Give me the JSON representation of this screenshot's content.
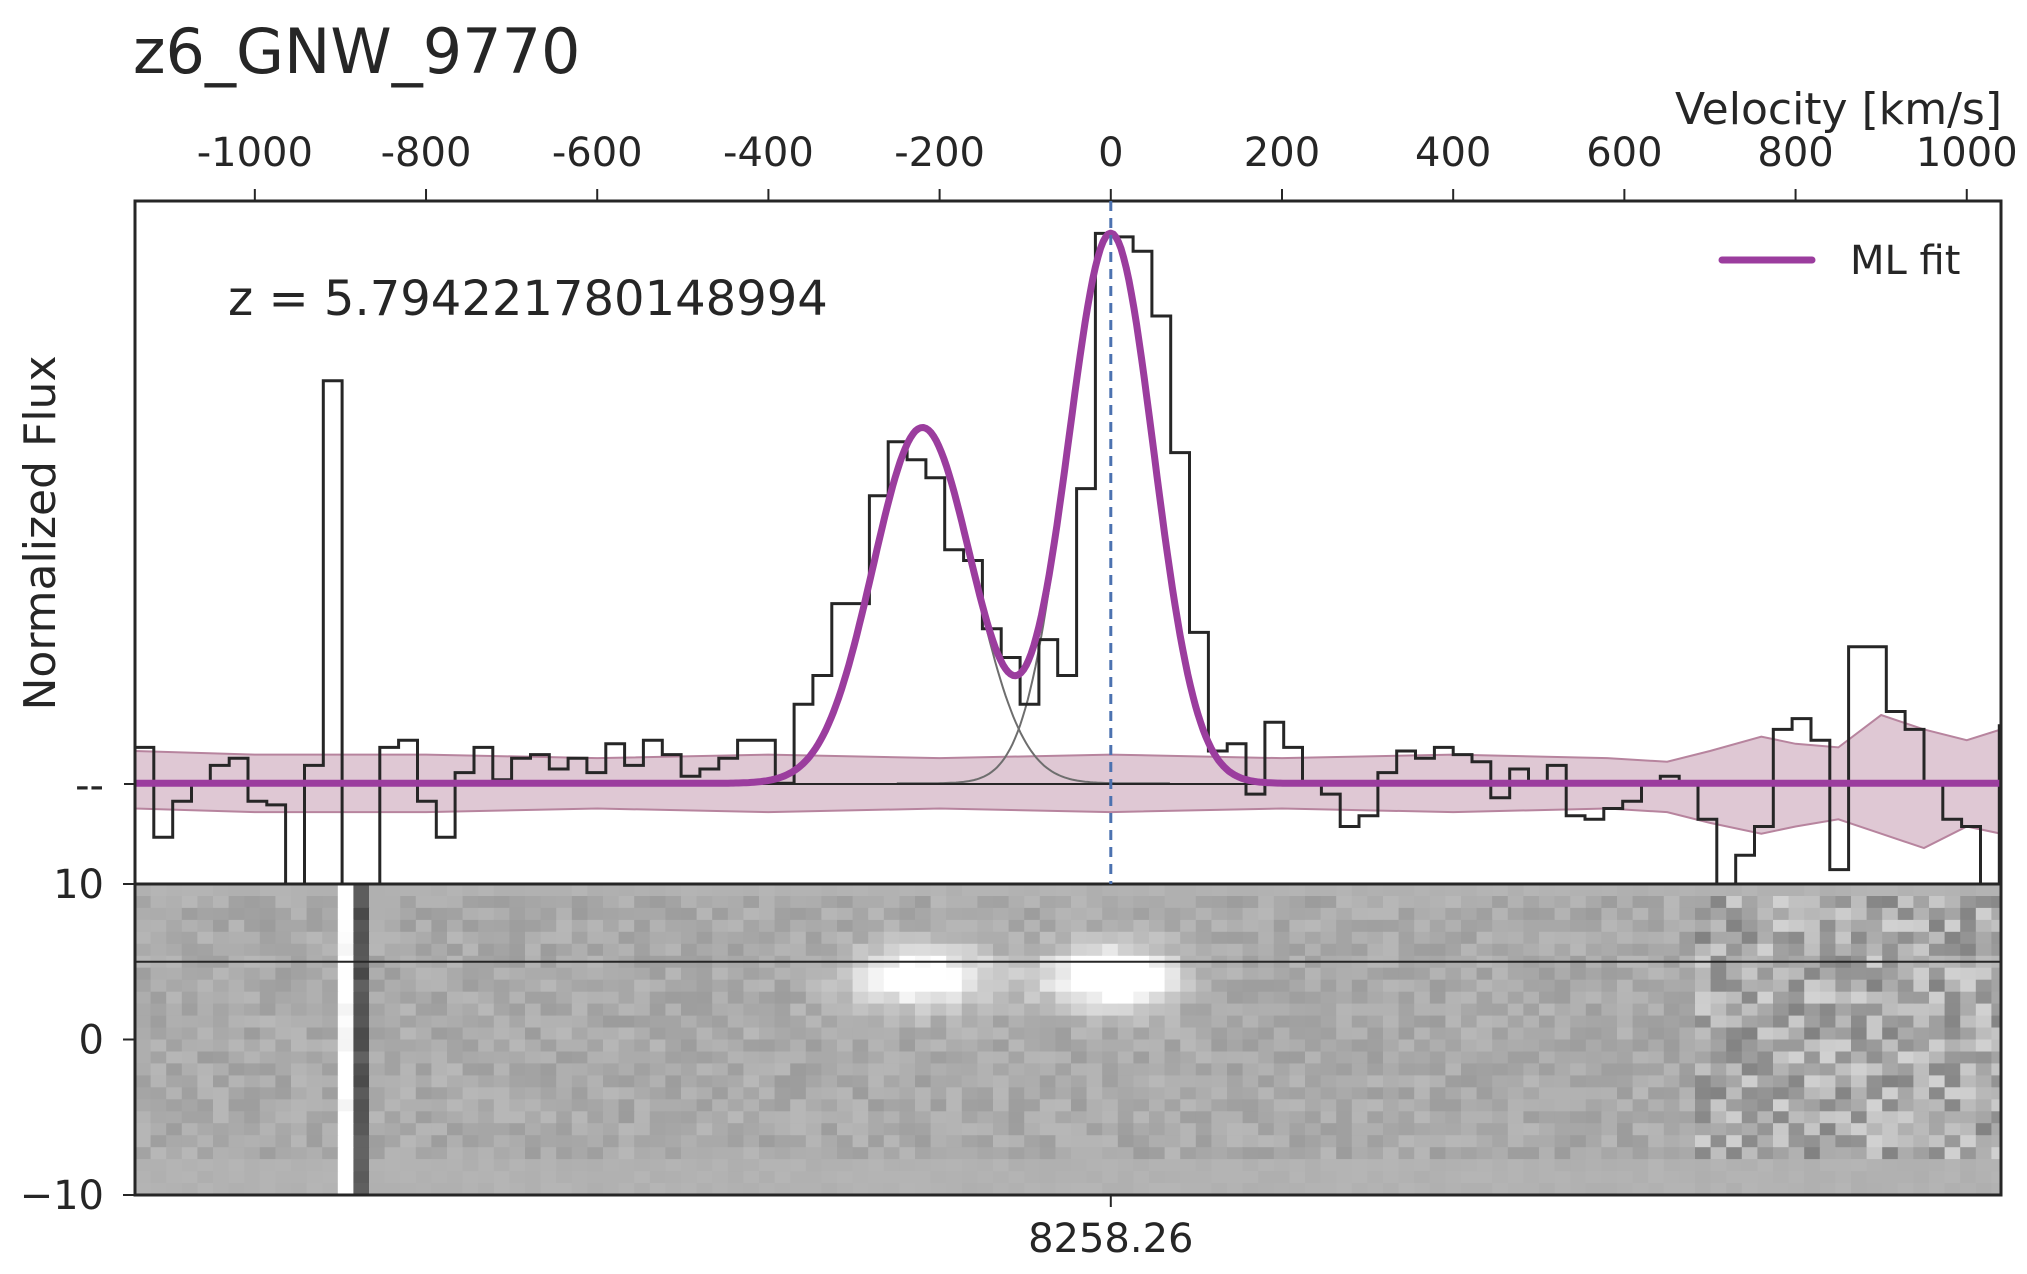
{
  "chart_data": [
    {
      "type": "line",
      "title": "z6_GNW_9770",
      "annotation": "z = 5.794221780148994",
      "xlabel": "Velocity [km/s]",
      "ylabel": "Normalized Flux",
      "xlim": [
        -1140,
        1040
      ],
      "ylim": [
        -0.28,
        1.62
      ],
      "x_ticks": [
        -1000,
        -800,
        -600,
        -400,
        -200,
        0,
        200,
        400,
        600,
        800,
        1000
      ],
      "x_tick_labels": [
        "-1000",
        "-800",
        "-600",
        "-400",
        "-200",
        "0",
        "200",
        "400",
        "600",
        "800",
        "1000"
      ],
      "y_tick_labels": [
        "--"
      ],
      "y_ticks": [
        0
      ],
      "grid": false,
      "legend": {
        "position": "top-right",
        "entries": [
          "ML fit"
        ]
      },
      "colors": {
        "fit": "#9b3d9e",
        "data": "#262626",
        "error_band": "#c9a3b7",
        "reference_line": "#4c72b0",
        "component": "#6e6e6e"
      },
      "fit_components": [
        {
          "center": -220,
          "sigma": 58,
          "amplitude": 0.99
        },
        {
          "center": 0,
          "sigma": 50,
          "amplitude": 1.53
        }
      ],
      "reference_velocity": 0,
      "series": [
        {
          "name": "",
          "style": "step",
          "x": [
            -1140,
            -1118,
            -1096,
            -1074,
            -1052,
            -1030,
            -1008,
            -986,
            -964,
            -942,
            -920,
            -898,
            -876,
            -854,
            -832,
            -810,
            -788,
            -766,
            -744,
            -722,
            -700,
            -678,
            -656,
            -634,
            -612,
            -590,
            -568,
            -546,
            -524,
            -502,
            -480,
            -458,
            -436,
            -414,
            -392,
            -370,
            -348,
            -326,
            -304,
            -282,
            -260,
            -238,
            -216,
            -194,
            -172,
            -150,
            -128,
            -106,
            -84,
            -62,
            -40,
            -18,
            4,
            26,
            48,
            70,
            92,
            114,
            136,
            158,
            180,
            202,
            224,
            246,
            268,
            290,
            312,
            334,
            356,
            378,
            400,
            422,
            444,
            466,
            488,
            510,
            532,
            554,
            576,
            598,
            620,
            642,
            664,
            686,
            708,
            730,
            752,
            774,
            796,
            818,
            840,
            862,
            884,
            906,
            928,
            950,
            972,
            994,
            1016,
            1038
          ],
          "y": [
            0.1,
            -0.15,
            -0.05,
            0.0,
            0.05,
            0.07,
            -0.05,
            -0.06,
            -0.4,
            0.05,
            1.12,
            -0.3,
            -0.3,
            0.1,
            0.12,
            -0.05,
            -0.15,
            0.03,
            0.1,
            0.01,
            0.07,
            0.08,
            0.04,
            0.07,
            0.03,
            0.11,
            0.05,
            0.12,
            0.08,
            0.02,
            0.04,
            0.07,
            0.12,
            0.12,
            0.0,
            0.22,
            0.3,
            0.5,
            0.5,
            0.8,
            0.95,
            0.9,
            0.85,
            0.65,
            0.62,
            0.43,
            0.35,
            0.22,
            0.4,
            0.3,
            0.82,
            1.53,
            1.52,
            1.48,
            1.3,
            0.92,
            0.42,
            0.09,
            0.11,
            -0.03,
            0.17,
            0.1,
            0.0,
            -0.03,
            -0.12,
            -0.09,
            0.03,
            0.09,
            0.07,
            0.1,
            0.08,
            0.06,
            -0.04,
            0.04,
            0.0,
            0.05,
            -0.09,
            -0.1,
            -0.07,
            -0.05,
            0.0,
            0.02,
            0.0,
            -0.1,
            -0.4,
            -0.2,
            -0.12,
            0.15,
            0.18,
            0.12,
            -0.24,
            0.38,
            0.38,
            0.2,
            0.15,
            0.0,
            -0.1,
            -0.12,
            -0.4,
            0.16
          ]
        },
        {
          "name": "ML fit",
          "style": "line"
        }
      ],
      "error_band": {
        "x": [
          -1140,
          -1000,
          -800,
          -600,
          -400,
          -200,
          0,
          200,
          400,
          580,
          650,
          700,
          760,
          800,
          850,
          900,
          950,
          1000,
          1040
        ],
        "lower": [
          -0.07,
          -0.08,
          -0.08,
          -0.07,
          -0.08,
          -0.07,
          -0.08,
          -0.07,
          -0.08,
          -0.07,
          -0.08,
          -0.11,
          -0.14,
          -0.12,
          -0.1,
          -0.14,
          -0.18,
          -0.12,
          -0.14
        ],
        "upper": [
          0.09,
          0.08,
          0.08,
          0.07,
          0.08,
          0.07,
          0.08,
          0.07,
          0.08,
          0.07,
          0.06,
          0.09,
          0.13,
          0.11,
          0.1,
          0.19,
          0.15,
          0.12,
          0.15
        ]
      }
    },
    {
      "type": "heatmap",
      "ylim": [
        -10,
        10
      ],
      "y_ticks": [
        10,
        0,
        -10
      ],
      "y_tick_labels": [
        "10",
        "0",
        "−10"
      ],
      "x_tick_labels": [
        "8258.26"
      ],
      "x_ticks": [
        0
      ],
      "colormap": "gray",
      "divider_y": 5,
      "features": [
        {
          "kind": "emission",
          "center": -220,
          "sigma": 55,
          "y": 4.0,
          "brightness": 0.45
        },
        {
          "kind": "emission",
          "center": 0,
          "sigma": 50,
          "y": 4.0,
          "brightness": 0.55
        },
        {
          "kind": "residual-column",
          "velocity_range": [
            -900,
            -870
          ]
        },
        {
          "kind": "noisy-region",
          "velocity_range": [
            680,
            1040
          ]
        }
      ]
    }
  ]
}
